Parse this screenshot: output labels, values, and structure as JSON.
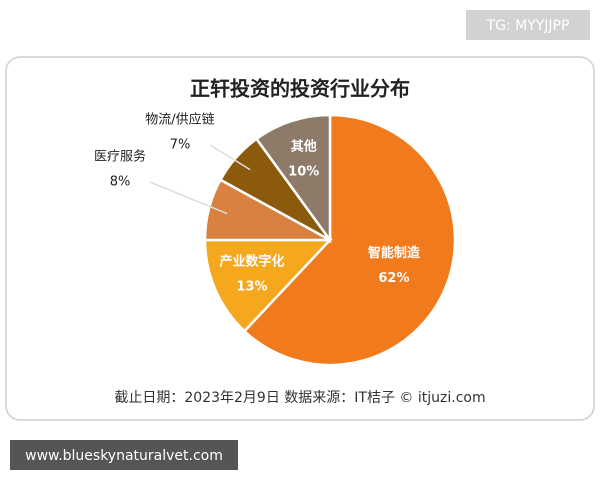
{
  "chart_data": {
    "type": "pie",
    "title": "正轩投资的投资行业分布",
    "categories": [
      "智能制造",
      "产业数字化",
      "医疗服务",
      "物流/供应链",
      "其他"
    ],
    "values": [
      62,
      13,
      8,
      7,
      10
    ],
    "value_labels": [
      "62%",
      "13%",
      "8%",
      "7%",
      "10%"
    ],
    "colors": [
      "#f07a1c",
      "#f5a71e",
      "#d88141",
      "#8c5a0c",
      "#8d7a68"
    ],
    "note": "截止日期：2023年2月9日    数据来源：IT桔子 © itjuzi.com"
  },
  "overlay": {
    "tag": "TG: MYYJJPP",
    "url": "www.blueskynaturalvet.com"
  }
}
